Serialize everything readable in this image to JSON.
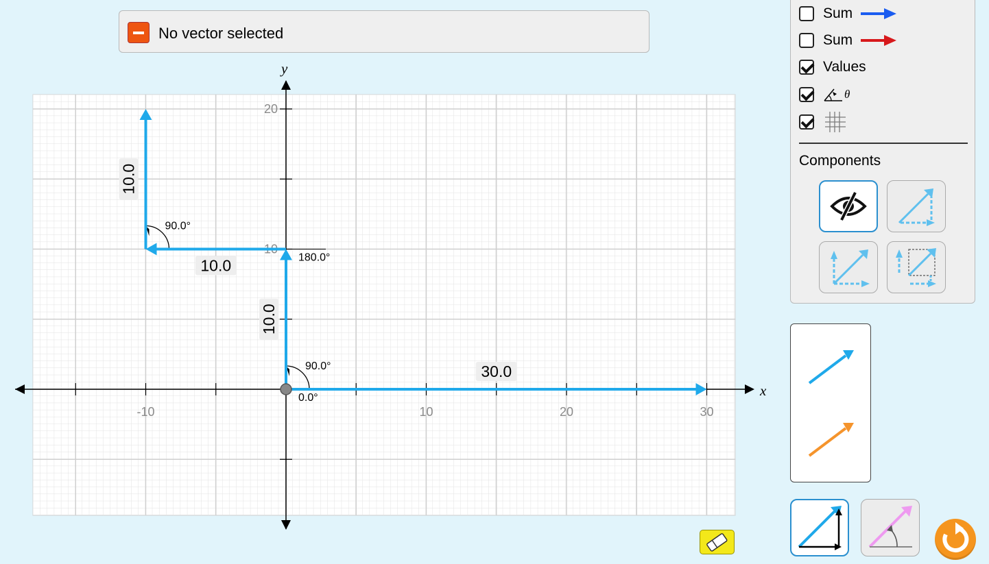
{
  "status": {
    "text": "No vector selected",
    "icon": "minus-icon"
  },
  "graph": {
    "axis_x_label": "x",
    "axis_y_label": "y",
    "x_tick_labels": [
      "-10",
      "10",
      "20",
      "30"
    ],
    "y_tick_labels": [
      "20",
      "10"
    ],
    "x_range": [
      -18,
      32
    ],
    "y_range": [
      -9,
      21
    ],
    "vectors": [
      {
        "tail": [
          0,
          0
        ],
        "tip": [
          30,
          0
        ],
        "magnitude_label": "30.0",
        "angle_label": "0.0°",
        "color": "#1fa9ea"
      },
      {
        "tail": [
          0,
          0
        ],
        "tip": [
          0,
          10
        ],
        "magnitude_label": "10.0",
        "angle_label": "90.0°",
        "color": "#1fa9ea"
      },
      {
        "tail": [
          0,
          10
        ],
        "tip": [
          -10,
          10
        ],
        "magnitude_label": "10.0",
        "angle_label": "180.0°",
        "color": "#1fa9ea"
      },
      {
        "tail": [
          -10,
          10
        ],
        "tip": [
          -10,
          20
        ],
        "magnitude_label": "10.0",
        "angle_label": "90.0°",
        "color": "#1fa9ea"
      }
    ]
  },
  "controls": {
    "checkboxes": [
      {
        "label": "Sum",
        "checked": false,
        "arrow_color": "#1a5cf0"
      },
      {
        "label": "Sum",
        "checked": false,
        "arrow_color": "#d7191c"
      },
      {
        "label": "Values",
        "checked": true
      },
      {
        "label": "θ",
        "checked": true,
        "icon": "angle-icon"
      },
      {
        "label": "",
        "checked": true,
        "icon": "grid-icon"
      }
    ],
    "components_title": "Components",
    "component_options": [
      "hidden",
      "triangle",
      "parallelogram",
      "projection"
    ],
    "selected_component": "hidden"
  },
  "toolbox": {
    "vector_colors": [
      "#1fa9ea",
      "#f5942c"
    ]
  },
  "colors": {
    "background": "#e1f4fb",
    "vector": "#1fa9ea",
    "reset": "#f5951e",
    "eraser": "#f3e81a"
  }
}
